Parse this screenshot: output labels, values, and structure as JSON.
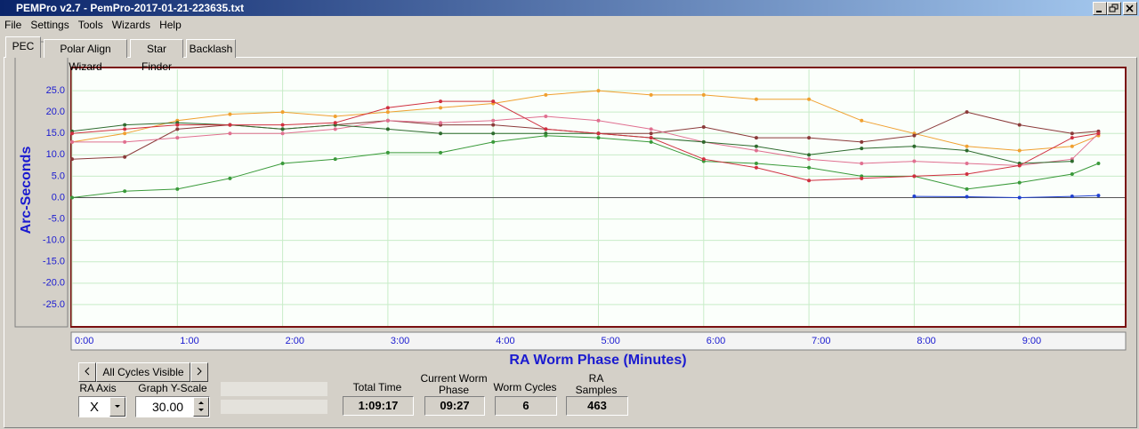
{
  "window": {
    "title": "PEMPro v2.7 - PemPro-2017-01-21-223635.txt"
  },
  "menu": [
    "File",
    "Settings",
    "Tools",
    "Wizards",
    "Help"
  ],
  "tabs": [
    "PEC",
    "Polar Align Wizard",
    "Star Finder",
    "Backlash"
  ],
  "chart_data": {
    "type": "line",
    "y_label": "Arc-Seconds",
    "x_label": "RA Worm Phase (Minutes)",
    "x": [
      0,
      0.5,
      1,
      1.5,
      2,
      2.5,
      3,
      3.5,
      4,
      4.5,
      5,
      5.5,
      6,
      6.5,
      7,
      7.5,
      8,
      8.5,
      9,
      9.5,
      9.75
    ],
    "xlim": [
      0,
      10
    ],
    "xticks": [
      {
        "value": 0,
        "label": "0:00"
      },
      {
        "value": 1,
        "label": "1:00"
      },
      {
        "value": 2,
        "label": "2:00"
      },
      {
        "value": 3,
        "label": "3:00"
      },
      {
        "value": 4,
        "label": "4:00"
      },
      {
        "value": 5,
        "label": "5:00"
      },
      {
        "value": 6,
        "label": "6:00"
      },
      {
        "value": 7,
        "label": "7:00"
      },
      {
        "value": 8,
        "label": "8:00"
      },
      {
        "value": 9,
        "label": "9:00"
      }
    ],
    "ylim": [
      -30,
      30
    ],
    "yticks": [
      {
        "value": 25,
        "label": "25.0"
      },
      {
        "value": 20,
        "label": "20.0"
      },
      {
        "value": 15,
        "label": "15.0"
      },
      {
        "value": 10,
        "label": "10.0"
      },
      {
        "value": 5,
        "label": "5.0"
      },
      {
        "value": 0,
        "label": "0.0"
      },
      {
        "value": -5,
        "label": "-5.0"
      },
      {
        "value": -10,
        "label": "-10.0"
      },
      {
        "value": -15,
        "label": "-15.0"
      },
      {
        "value": -20,
        "label": "-20.0"
      },
      {
        "value": -25,
        "label": "-25.0"
      }
    ],
    "grid": true,
    "series": [
      {
        "color": "#f0a030",
        "values": [
          13,
          15,
          18,
          19.5,
          20,
          19,
          20,
          21,
          22,
          24,
          25,
          24,
          24,
          23,
          23,
          18,
          15,
          12,
          11,
          12,
          14.5
        ]
      },
      {
        "color": "#8b3a3a",
        "values": [
          9,
          9.5,
          16,
          17,
          16,
          17,
          18,
          17,
          17,
          16,
          15,
          15,
          16.5,
          14,
          14,
          13,
          14.5,
          20,
          17,
          15,
          15.5
        ]
      },
      {
        "color": "#e07090",
        "values": [
          13,
          13,
          14,
          15,
          15,
          16,
          18,
          17.5,
          18,
          19,
          18,
          16,
          13,
          11,
          9,
          8,
          8.5,
          8,
          7.5,
          9,
          15
        ]
      },
      {
        "color": "#2e6b2e",
        "values": [
          15.5,
          17,
          17.5,
          17,
          16,
          17,
          16,
          15,
          15,
          15,
          15,
          14,
          13,
          12,
          10,
          11.5,
          12,
          11,
          8,
          8.5,
          null
        ]
      },
      {
        "color": "#3a9a3a",
        "values": [
          0,
          1.5,
          2,
          4.5,
          8,
          9,
          10.5,
          10.5,
          13,
          14.5,
          14,
          13,
          8.5,
          8,
          7,
          5,
          5,
          2,
          3.5,
          5.5,
          8
        ]
      },
      {
        "color": "#d03040",
        "values": [
          15,
          16,
          17,
          17,
          17,
          17.5,
          21,
          22.5,
          22.5,
          16,
          15,
          14,
          9,
          7,
          4,
          4.5,
          5,
          5.5,
          7.5,
          14,
          15
        ]
      },
      {
        "color": "#2040d0",
        "values": [
          null,
          null,
          null,
          null,
          null,
          null,
          null,
          null,
          null,
          null,
          null,
          null,
          null,
          null,
          null,
          null,
          0.3,
          0.2,
          0,
          0.3,
          0.5
        ]
      }
    ]
  },
  "controls": {
    "cycle_selector": "All Cycles Visible",
    "ra_axis_label": "RA Axis",
    "ra_axis_value": "X",
    "y_scale_label": "Graph Y-Scale",
    "y_scale_value": "30.00"
  },
  "stats": [
    {
      "label": "Total Time",
      "value": "1:09:17"
    },
    {
      "label": "Current Worm Phase",
      "value": "09:27"
    },
    {
      "label": "Worm Cycles",
      "value": 6
    },
    {
      "label": "RA Samples",
      "value": 463
    }
  ]
}
